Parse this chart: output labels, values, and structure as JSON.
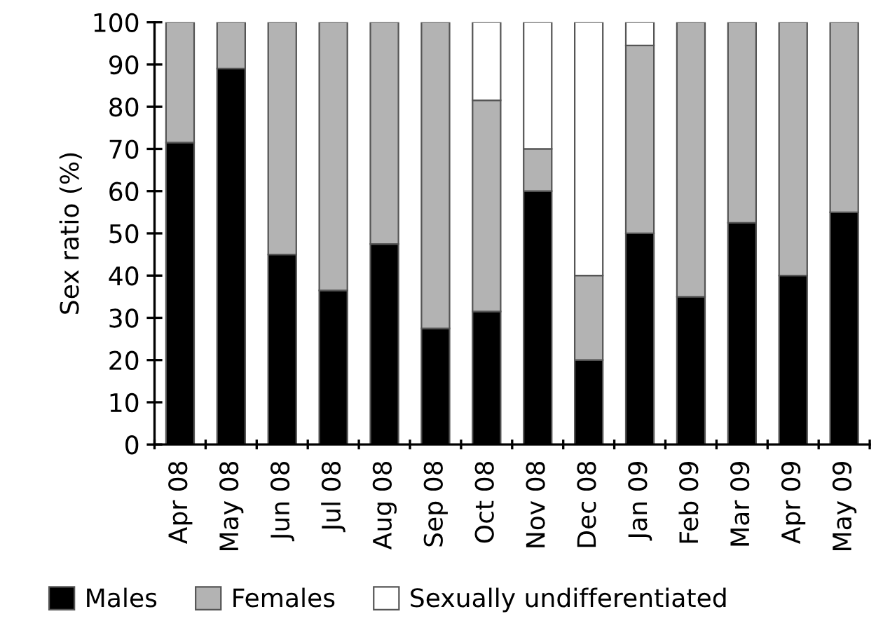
{
  "chart_data": {
    "type": "bar",
    "stacked": true,
    "ylabel": "Sex ratio (%)",
    "categories": [
      "Apr 08",
      "May 08",
      "Jun 08",
      "Jul 08",
      "Aug 08",
      "Sep 08",
      "Oct 08",
      "Nov 08",
      "Dec 08",
      "Jan 09",
      "Feb 09",
      "Mar 09",
      "Apr 09",
      "May 09"
    ],
    "series": [
      {
        "name": "Males",
        "color": "#000000",
        "values": [
          71.5,
          89,
          45,
          36.5,
          47.5,
          27.5,
          31.5,
          60,
          20,
          50,
          35,
          52.5,
          40,
          55
        ]
      },
      {
        "name": "Females",
        "color": "#b3b3b3",
        "values": [
          28.5,
          11,
          55,
          63.5,
          52.5,
          72.5,
          50,
          10,
          20,
          44.5,
          65,
          47.5,
          60,
          45
        ]
      },
      {
        "name": "Sexually undifferentiated",
        "color": "#ffffff",
        "values": [
          0,
          0,
          0,
          0,
          0,
          0,
          18.5,
          30,
          60,
          5.5,
          0,
          0,
          0,
          0
        ]
      }
    ],
    "ylim": [
      0,
      100
    ],
    "yticks": [
      0,
      10,
      20,
      30,
      40,
      50,
      60,
      70,
      80,
      90,
      100
    ],
    "grid": false,
    "legend": "bottom"
  }
}
